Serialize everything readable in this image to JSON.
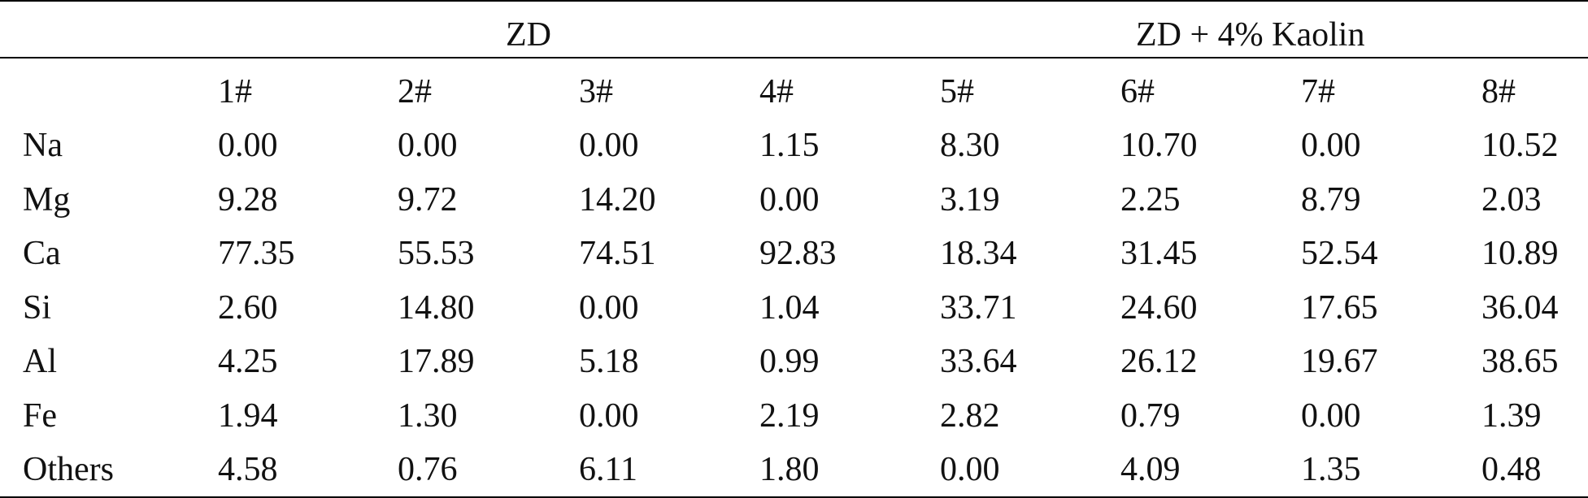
{
  "table": {
    "groups": [
      {
        "label": "ZD"
      },
      {
        "label": "ZD + 4% Kaolin"
      }
    ],
    "columns": [
      "1#",
      "2#",
      "3#",
      "4#",
      "5#",
      "6#",
      "7#",
      "8#"
    ],
    "rows": [
      {
        "element": "Na",
        "values": [
          "0.00",
          "0.00",
          "0.00",
          "1.15",
          "8.30",
          "10.70",
          "0.00",
          "10.52"
        ]
      },
      {
        "element": "Mg",
        "values": [
          "9.28",
          "9.72",
          "14.20",
          "0.00",
          "3.19",
          "2.25",
          "8.79",
          "2.03"
        ]
      },
      {
        "element": "Ca",
        "values": [
          "77.35",
          "55.53",
          "74.51",
          "92.83",
          "18.34",
          "31.45",
          "52.54",
          "10.89"
        ]
      },
      {
        "element": "Si",
        "values": [
          "2.60",
          "14.80",
          "0.00",
          "1.04",
          "33.71",
          "24.60",
          "17.65",
          "36.04"
        ]
      },
      {
        "element": "Al",
        "values": [
          "4.25",
          "17.89",
          "5.18",
          "0.99",
          "33.64",
          "26.12",
          "19.67",
          "38.65"
        ]
      },
      {
        "element": "Fe",
        "values": [
          "1.94",
          "1.30",
          "0.00",
          "2.19",
          "2.82",
          "0.79",
          "0.00",
          "1.39"
        ]
      },
      {
        "element": "Others",
        "values": [
          "4.58",
          "0.76",
          "6.11",
          "1.80",
          "0.00",
          "4.09",
          "1.35",
          "0.48"
        ]
      }
    ]
  }
}
